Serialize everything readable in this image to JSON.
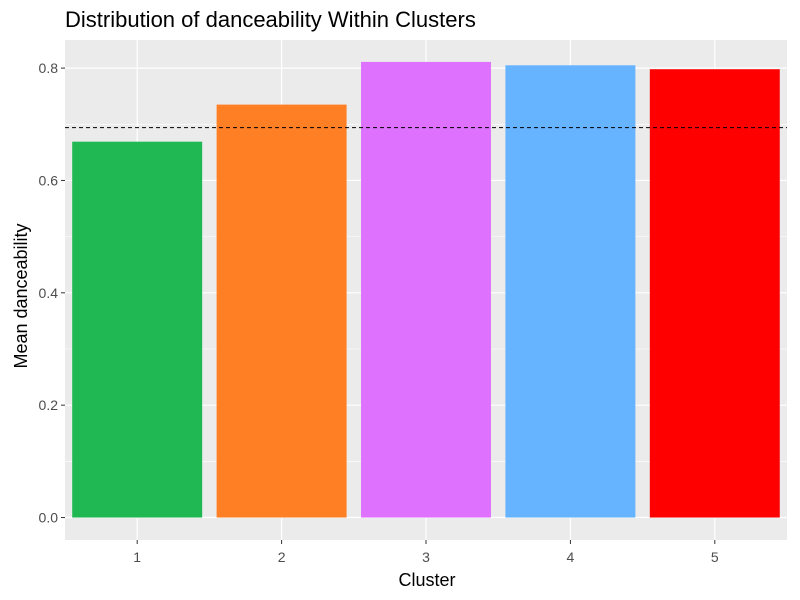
{
  "chart_data": {
    "type": "bar",
    "title": "Distribution of danceability Within Clusters",
    "xlabel": "Cluster",
    "ylabel": "Mean danceability",
    "categories": [
      "1",
      "2",
      "3",
      "4",
      "5"
    ],
    "values": [
      0.669,
      0.735,
      0.811,
      0.805,
      0.798
    ],
    "colors": [
      "#1FB853",
      "#FF7F24",
      "#DE72FF",
      "#66B3FF",
      "#FF0000"
    ],
    "ylim": [
      -0.04,
      0.85
    ],
    "yticks": [
      0.0,
      0.2,
      0.4,
      0.6,
      0.8
    ],
    "ytick_labels": [
      "0.0",
      "0.2",
      "0.4",
      "0.6",
      "0.8"
    ],
    "reference_line": {
      "value": 0.694,
      "style": "dashed",
      "color": "#000000"
    },
    "grid": true,
    "panel_background": "#EBEBEB",
    "grid_color": "#FFFFFF",
    "legend": "none"
  }
}
